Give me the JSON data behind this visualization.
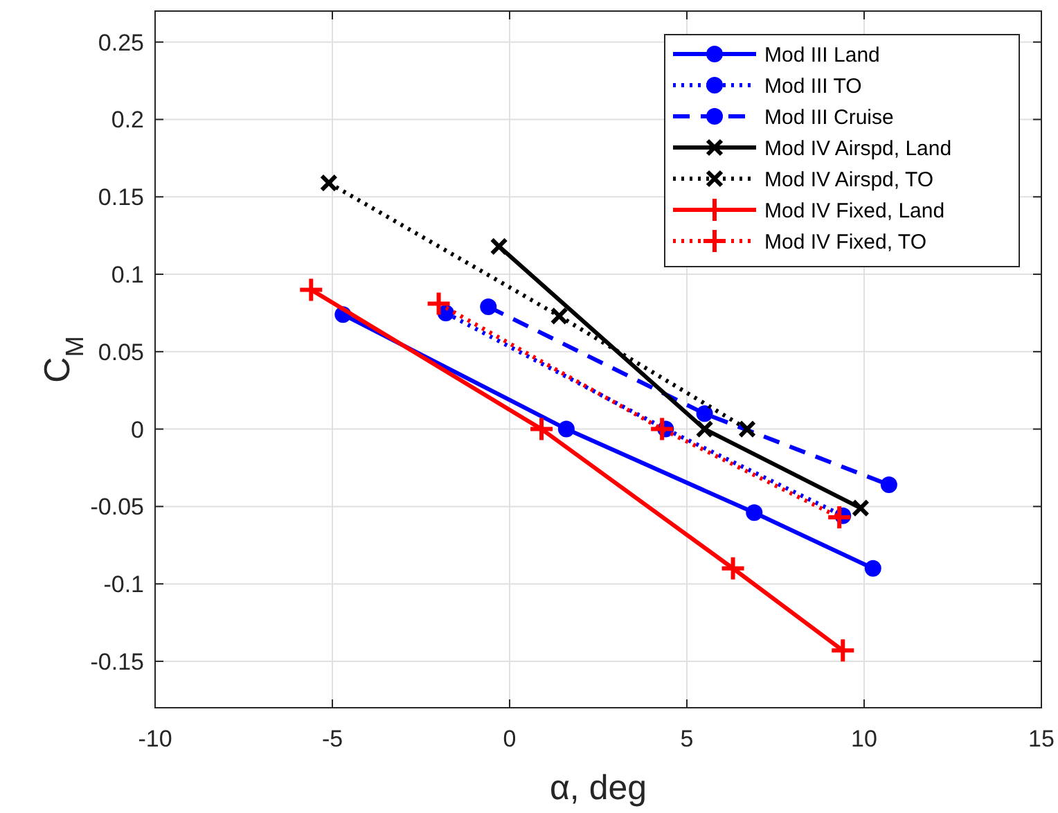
{
  "chart_data": {
    "type": "line",
    "xlabel": "α, deg",
    "ylabel": "C$_{M}$",
    "xlim": [
      -10,
      15
    ],
    "xticks": [
      -10,
      -5,
      0,
      5,
      10,
      15
    ],
    "ylim": [
      -0.18,
      0.27
    ],
    "yticks": [
      -0.15,
      -0.1,
      -0.05,
      0,
      0.05,
      0.1,
      0.15,
      0.2,
      0.25
    ],
    "grid": true,
    "legend": "top right",
    "series": [
      {
        "name": "Mod III Land",
        "color": "#0000ff",
        "line_style": "solid",
        "marker": "circle",
        "x": [
          -4.7,
          1.6,
          6.9,
          10.25
        ],
        "values": [
          0.074,
          0,
          -0.054,
          -0.09
        ]
      },
      {
        "name": "Mod III TO",
        "color": "#0000ff",
        "line_style": "dotted",
        "marker": "circle",
        "x": [
          -1.8,
          4.4,
          9.4
        ],
        "values": [
          0.075,
          0,
          -0.056
        ]
      },
      {
        "name": "Mod III Cruise",
        "color": "#0000ff",
        "line_style": "dashed",
        "marker": "circle",
        "x": [
          -0.6,
          5.5,
          10.7
        ],
        "values": [
          0.079,
          0.01,
          -0.036
        ]
      },
      {
        "name": "Mod IV Airspd, Land",
        "color": "#000000",
        "line_style": "solid",
        "marker": "cross",
        "x": [
          -0.3,
          5.5,
          9.9
        ],
        "values": [
          0.118,
          0,
          -0.051
        ]
      },
      {
        "name": "Mod IV Airspd, TO",
        "color": "#000000",
        "line_style": "dotted",
        "marker": "cross",
        "x": [
          -5.1,
          1.4,
          6.7
        ],
        "values": [
          0.159,
          0.073,
          0
        ]
      },
      {
        "name": "Mod IV Fixed, Land",
        "color": "#ff0000",
        "line_style": "solid",
        "marker": "plus",
        "x": [
          -5.6,
          0.9,
          6.3,
          9.4
        ],
        "values": [
          0.09,
          0,
          -0.09,
          -0.143
        ]
      },
      {
        "name": "Mod IV Fixed, TO",
        "color": "#ff0000",
        "line_style": "dotted",
        "marker": "plus",
        "x": [
          -2.0,
          4.3,
          9.3
        ],
        "values": [
          0.081,
          0,
          -0.057
        ]
      }
    ]
  }
}
